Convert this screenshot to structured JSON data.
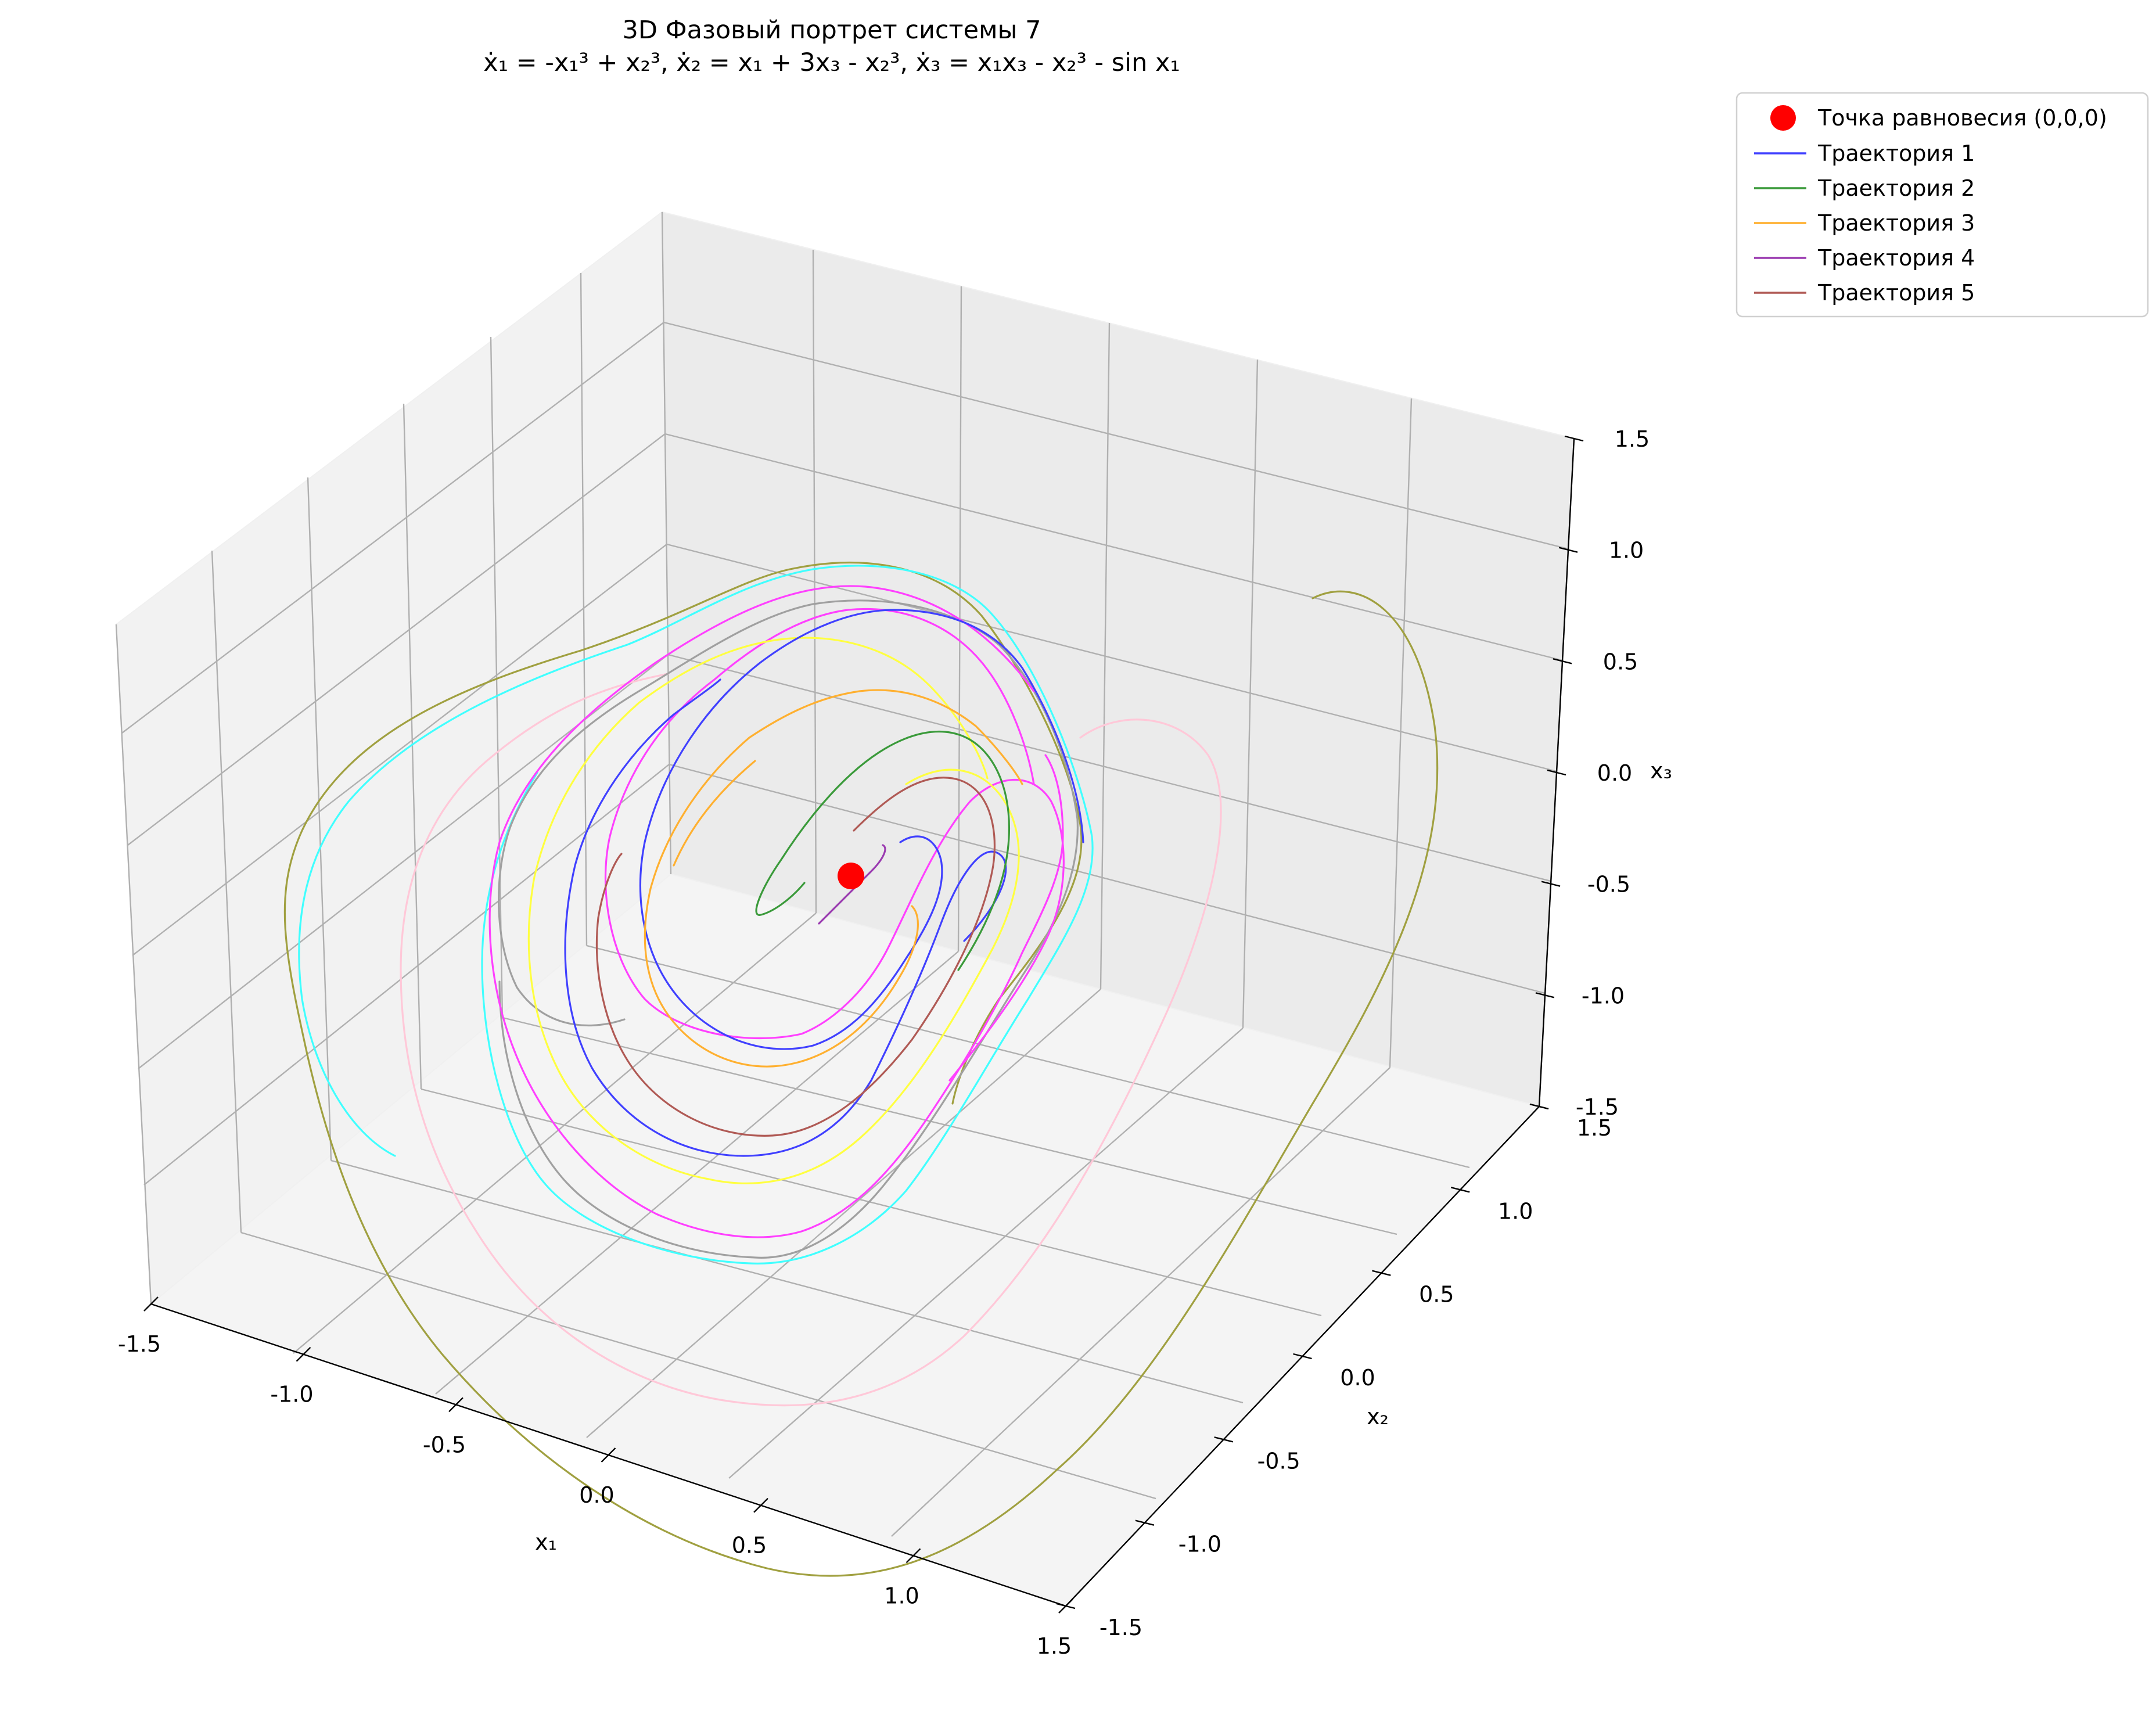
{
  "chart_data": {
    "type": "line",
    "title": "3D Фазовый портрет системы 7",
    "subtitle": "ẋ₁ = -x₁³ + x₂³, ẋ₂ = x₁ + 3x₃ - x₂³, ẋ₃ = x₁x₃ - x₂³ - sin x₁",
    "xlabel": "x₁",
    "ylabel": "x₂",
    "zlabel": "x₃",
    "xlim": [
      -1.5,
      1.5
    ],
    "ylim": [
      -1.5,
      1.5
    ],
    "zlim": [
      -1.5,
      1.5
    ],
    "x_ticks": [
      "-1.5",
      "-1.0",
      "-0.5",
      "0.0",
      "0.5",
      "1.0",
      "1.5"
    ],
    "y_ticks": [
      "-1.5",
      "-1.0",
      "-0.5",
      "0.0",
      "0.5",
      "1.0",
      "1.5"
    ],
    "z_ticks": [
      "-1.5",
      "-1.0",
      "-0.5",
      "0.0",
      "0.5",
      "1.0",
      "1.5"
    ],
    "grid": true,
    "legend_position": "outside-top-right",
    "equilibrium": {
      "name": "Точка равновесия (0,0,0)",
      "color": "#ff0000",
      "point": [
        0,
        0,
        0
      ]
    },
    "series": [
      {
        "name": "Траектория 1",
        "color": "#4040ff"
      },
      {
        "name": "Траектория 2",
        "color": "#3a9a3a"
      },
      {
        "name": "Траектория 3",
        "color": "#ffb030"
      },
      {
        "name": "Траектория 4",
        "color": "#9a3ab0"
      },
      {
        "name": "Траектория 5",
        "color": "#b05a55"
      },
      {
        "color": "#ff40ff"
      },
      {
        "color": "#ffff40"
      },
      {
        "color": "#a0a0a0"
      },
      {
        "color": "#40ffff"
      },
      {
        "color": "#ffc8d8"
      },
      {
        "color": "#a0a040"
      }
    ]
  }
}
